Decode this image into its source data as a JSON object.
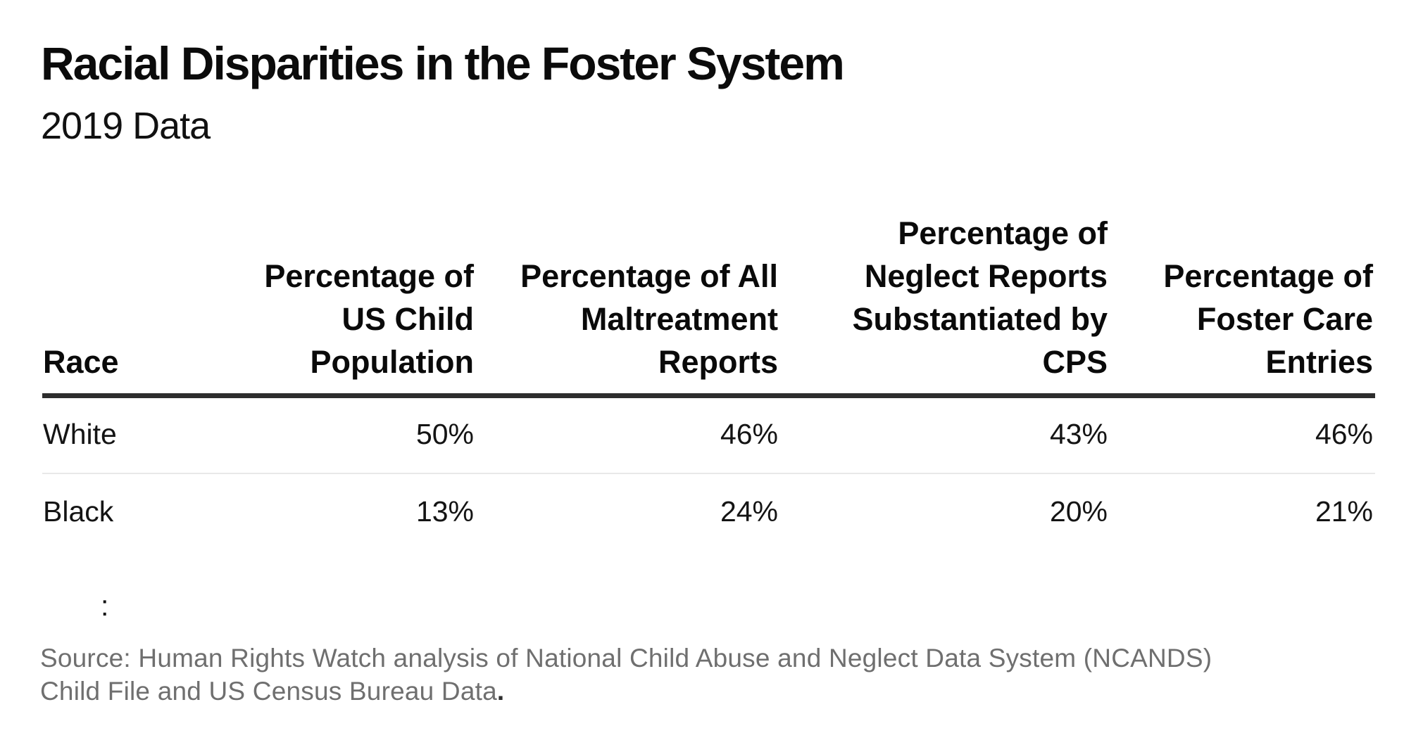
{
  "header": {
    "title": "Racial Disparities in the Foster System",
    "subtitle": "2019 Data"
  },
  "table": {
    "columns": [
      "Race",
      "Percentage of\nUS Child\nPopulation",
      "Percentage of All\nMaltreatment\nReports",
      "Percentage of\nNeglect Reports\nSubstantiated by\nCPS",
      "Percentage of\nFoster Care\nEntries"
    ],
    "rows": [
      {
        "cells": [
          "White",
          "50%",
          "46%",
          "43%",
          "46%"
        ]
      },
      {
        "cells": [
          "Black",
          "13%",
          "24%",
          "20%",
          "21%"
        ]
      }
    ]
  },
  "note": {
    "colon": ":"
  },
  "source": {
    "line1": "Source: Human Rights Watch analysis of National Child Abuse and Neglect Data System (NCANDS)",
    "line2": "Child File and US Census Bureau Data",
    "terminal_period": "."
  },
  "colors": {
    "background": "#ffffff",
    "text": "#0b0b0b",
    "header_rule": "#2d2d2d",
    "row_divider": "#e8e8e8",
    "source_gray": "#6f6f6f"
  },
  "chart_data": {
    "type": "table",
    "title": "Racial Disparities in the Foster System",
    "subtitle": "2019 Data",
    "row_header": "Race",
    "categories": [
      "Percentage of US Child Population",
      "Percentage of All Maltreatment Reports",
      "Percentage of Neglect Reports Substantiated by CPS",
      "Percentage of Foster Care Entries"
    ],
    "series": [
      {
        "name": "White",
        "values": [
          50,
          46,
          43,
          46
        ]
      },
      {
        "name": "Black",
        "values": [
          13,
          24,
          20,
          21
        ]
      }
    ],
    "unit": "%",
    "source": "Source: Human Rights Watch analysis of National Child Abuse and Neglect Data System (NCANDS) Child File and US Census Bureau Data."
  }
}
